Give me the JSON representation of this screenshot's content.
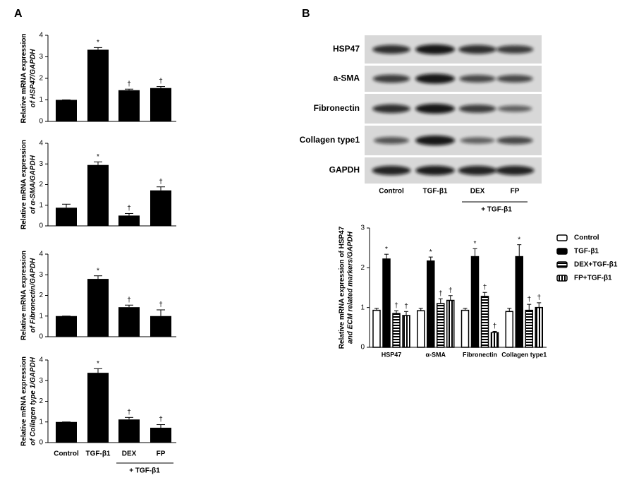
{
  "panel_labels": [
    "A",
    "B"
  ],
  "blot": {
    "rows": [
      "HSP47",
      "a-SMA",
      "Fibronectin",
      "Collagen type1",
      "GAPDH"
    ],
    "lanes": [
      "Control",
      "TGF-β1",
      "DEX",
      "FP"
    ],
    "group_label": "+ TGF-β1"
  },
  "chart_data": [
    {
      "type": "bar",
      "ylabel": [
        "Relative mRNA expression",
        "of HSP47/GAPDH"
      ],
      "categories": [
        null,
        null,
        null,
        null
      ],
      "values": [
        1.0,
        3.33,
        1.45,
        1.55
      ],
      "errors": [
        0,
        0.1,
        0.05,
        0.07
      ],
      "markers": [
        null,
        "*",
        "†",
        "†"
      ],
      "color": "#000000",
      "ylim": [
        0,
        4
      ],
      "yticks": [
        0,
        1,
        2,
        3,
        4
      ]
    },
    {
      "type": "bar",
      "ylabel": [
        "Relative mRNA expression",
        "of α-SMA/GAPDH"
      ],
      "categories": [
        null,
        null,
        null,
        null
      ],
      "values": [
        0.88,
        2.95,
        0.5,
        1.72
      ],
      "errors": [
        0.17,
        0.15,
        0.1,
        0.17
      ],
      "markers": [
        null,
        "*",
        "†",
        "†"
      ],
      "color": "#000000",
      "ylim": [
        0,
        4
      ],
      "yticks": [
        0,
        1,
        2,
        3,
        4
      ]
    },
    {
      "type": "bar",
      "ylabel": [
        "Relative mRNA expression",
        "of Fibronectin/GAPDH"
      ],
      "categories": [
        null,
        null,
        null,
        null
      ],
      "values": [
        1.0,
        2.8,
        1.43,
        1.0
      ],
      "errors": [
        0,
        0.15,
        0.1,
        0.3
      ],
      "markers": [
        null,
        "*",
        "†",
        "†"
      ],
      "color": "#000000",
      "ylim": [
        0,
        4
      ],
      "yticks": [
        0,
        1,
        2,
        3,
        4
      ]
    },
    {
      "type": "bar",
      "ylabel": [
        "Relative mRNA expression",
        "of Collagen type 1/GAPDH"
      ],
      "categories": [
        "Control",
        "TGF-β1",
        "DEX",
        "FP"
      ],
      "group_label": "+ TGF-β1",
      "values": [
        1.0,
        3.38,
        1.12,
        0.72
      ],
      "errors": [
        0,
        0.2,
        0.1,
        0.15
      ],
      "markers": [
        null,
        "*",
        "†",
        "†"
      ],
      "color": "#000000",
      "ylim": [
        0,
        4
      ],
      "yticks": [
        0,
        1,
        2,
        3,
        4
      ]
    },
    {
      "type": "bar",
      "ylabel": [
        "Relative mRNA expression of HSP47",
        "and ECM related markers/GAPDH"
      ],
      "categories": [
        "HSP47",
        "α-SMA",
        "Fibronectin",
        "Collagen type1"
      ],
      "legend": "right",
      "ylim": [
        0,
        3
      ],
      "yticks": [
        0,
        1,
        2,
        3
      ],
      "series": [
        {
          "name": "Control",
          "color": "#000000",
          "fill": "white",
          "values": [
            0.93,
            0.92,
            0.93,
            0.9
          ],
          "errors": [
            0.05,
            0.06,
            0.05,
            0.08
          ],
          "markers": [
            null,
            null,
            null,
            null
          ]
        },
        {
          "name": "TGF-β1",
          "color": "#000000",
          "fill": "solid",
          "values": [
            2.22,
            2.17,
            2.28,
            2.28
          ],
          "errors": [
            0.12,
            0.1,
            0.2,
            0.3
          ],
          "markers": [
            "*",
            "*",
            "*",
            "*"
          ]
        },
        {
          "name": "DEX+TGF-β1",
          "color": "#000000",
          "fill": "horizontal-stripes",
          "values": [
            0.85,
            1.1,
            1.28,
            0.93
          ],
          "errors": [
            0.07,
            0.12,
            0.1,
            0.15
          ],
          "markers": [
            "†",
            "†",
            "†",
            "†"
          ]
        },
        {
          "name": "FP+TGF-β1",
          "color": "#000000",
          "fill": "vertical-stripes",
          "values": [
            0.8,
            1.18,
            0.37,
            1.0
          ],
          "errors": [
            0.1,
            0.12,
            0.03,
            0.12
          ],
          "markers": [
            "†",
            "†",
            "†",
            "†"
          ]
        }
      ]
    }
  ]
}
